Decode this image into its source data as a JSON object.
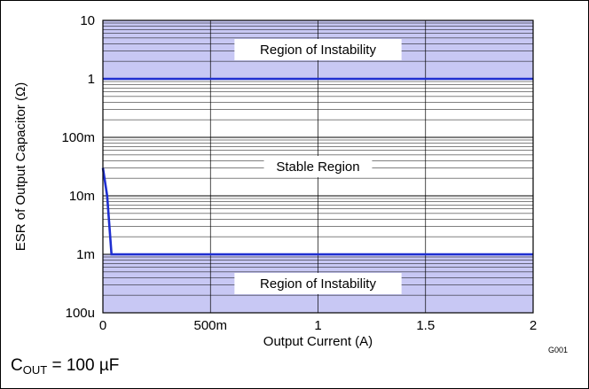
{
  "chart_data": {
    "type": "area",
    "xlabel": "Output Current (A)",
    "ylabel": "ESR of Output Capacitor (Ω)",
    "xlim": [
      0,
      2
    ],
    "ylim": [
      0.0001,
      10
    ],
    "yscale": "log",
    "x_ticks": [
      {
        "value": 0,
        "label": "0"
      },
      {
        "value": 0.5,
        "label": "500m"
      },
      {
        "value": 1,
        "label": "1"
      },
      {
        "value": 1.5,
        "label": "1.5"
      },
      {
        "value": 2,
        "label": "2"
      }
    ],
    "y_ticks": [
      {
        "value": 10,
        "label": "10"
      },
      {
        "value": 1,
        "label": "1"
      },
      {
        "value": 0.1,
        "label": "100m"
      },
      {
        "value": 0.01,
        "label": "10m"
      },
      {
        "value": 0.001,
        "label": "1m"
      },
      {
        "value": 0.0001,
        "label": "100u"
      }
    ],
    "grid": true,
    "series": [
      {
        "values": [
          [
            0,
            1
          ],
          [
            2,
            1
          ]
        ]
      },
      {
        "values": [
          [
            0,
            0.03
          ],
          [
            0.02,
            0.01
          ],
          [
            0.04,
            0.001
          ],
          [
            2,
            0.001
          ]
        ]
      }
    ],
    "regions": [
      {
        "label": "Region of Instability",
        "y_from": 1,
        "y_to": 10
      },
      {
        "label": "Stable Region",
        "y_from": 0.001,
        "y_to": 1
      },
      {
        "label": "Region of Instability",
        "y_from": 0.0001,
        "y_to": 0.001
      }
    ],
    "colors": {
      "instability_fill": "#c8c8f4",
      "curve": "#1f2fd0"
    },
    "graph_code": "G001"
  },
  "note": {
    "prefix": "C",
    "subscript": "OUT",
    "suffix": " = 100 µF"
  }
}
